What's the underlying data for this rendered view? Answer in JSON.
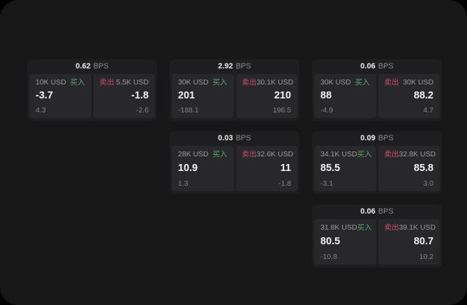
{
  "colors": {
    "buy_accent": "#55a96c",
    "sell_accent": "#c94e66",
    "screen_background": "#171718",
    "card_background": "#1e1e20",
    "panel_background": "#28282b"
  },
  "cards": [
    {
      "bps": "0.62",
      "unit": "BPS",
      "buy": {
        "side": "买入",
        "size": "10K USD",
        "value": "-3.7",
        "secondary": "4.3"
      },
      "sell": {
        "side": "卖出",
        "size": "5.5K USD",
        "value": "-1.8",
        "secondary": "-2.6"
      }
    },
    {
      "bps": "2.92",
      "unit": "BPS",
      "buy": {
        "side": "买入",
        "size": "30K USD",
        "value": "201",
        "secondary": "-188.1"
      },
      "sell": {
        "side": "卖出",
        "size": "30.1K USD",
        "value": "210",
        "secondary": "196.5"
      }
    },
    {
      "bps": "0.06",
      "unit": "BPS",
      "buy": {
        "side": "买入",
        "size": "30K USD",
        "value": "88",
        "secondary": "-4.9"
      },
      "sell": {
        "side": "卖出",
        "size": "30K USD",
        "value": "88.2",
        "secondary": "4.7"
      }
    },
    {
      "bps": "0.03",
      "unit": "BPS",
      "buy": {
        "side": "买入",
        "size": "28K USD",
        "value": "10.9",
        "secondary": "1.3"
      },
      "sell": {
        "side": "卖出",
        "size": "32.6K USD",
        "value": "11",
        "secondary": "-1.8"
      }
    },
    {
      "bps": "0.09",
      "unit": "BPS",
      "buy": {
        "side": "买入",
        "size": "34.1K USD",
        "value": "85.5",
        "secondary": "-3.1"
      },
      "sell": {
        "side": "卖出",
        "size": "32.8K USD",
        "value": "85.8",
        "secondary": "3.0"
      }
    },
    {
      "bps": "0.06",
      "unit": "BPS",
      "buy": {
        "side": "买入",
        "size": "31.8K USD",
        "value": "80.5",
        "secondary": "-10.8"
      },
      "sell": {
        "side": "卖出",
        "size": "39.1K USD",
        "value": "80.7",
        "secondary": "10.2"
      }
    }
  ]
}
